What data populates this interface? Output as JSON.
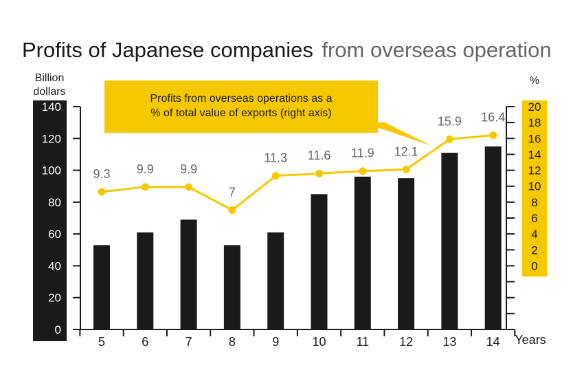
{
  "colors": {
    "bar": "#1a1a1a",
    "line": "#f5c800",
    "callout_bg": "#f5c800",
    "left_axis_panel": "#1a1a1a",
    "right_axis_panel": "#f5c800",
    "title_sub": "#666666"
  },
  "chart_data": {
    "type": "bar",
    "title": "Profits of Japanese companies",
    "subtitle": "from overseas operation",
    "left_axis": {
      "label_lines": [
        "Billion",
        "dollars"
      ],
      "ticks": [
        "0",
        "20",
        "40",
        "60",
        "80",
        "100",
        "120",
        "140"
      ],
      "ylim": [
        0,
        140
      ]
    },
    "right_axis": {
      "label": "%",
      "ticks": [
        "0",
        "2",
        "4",
        "6",
        "8",
        "10",
        "12",
        "14",
        "16",
        "18",
        "20"
      ],
      "ylim": [
        -8,
        20
      ]
    },
    "xlabel": "Years",
    "categories": [
      "5",
      "6",
      "7",
      "8",
      "9",
      "10",
      "11",
      "12",
      "13",
      "14"
    ],
    "series": [
      {
        "type": "bar",
        "axis": "left",
        "values": [
          53,
          61,
          69,
          53,
          61,
          85,
          96,
          95,
          111,
          115
        ]
      },
      {
        "type": "line",
        "axis": "right",
        "values": [
          9.3,
          9.9,
          9.9,
          7,
          11.3,
          11.6,
          11.9,
          12.1,
          15.9,
          16.4
        ],
        "labels": [
          "9.3",
          "9.9",
          "9.9",
          "7",
          "11.3",
          "11.6",
          "11.9",
          "12.1",
          "15.9",
          "16.4"
        ]
      }
    ],
    "annotation": {
      "lines": [
        "Profits from overseas operations as a",
        "% of total value of exports (right axis)"
      ]
    },
    "grid": false,
    "legend": "none"
  }
}
